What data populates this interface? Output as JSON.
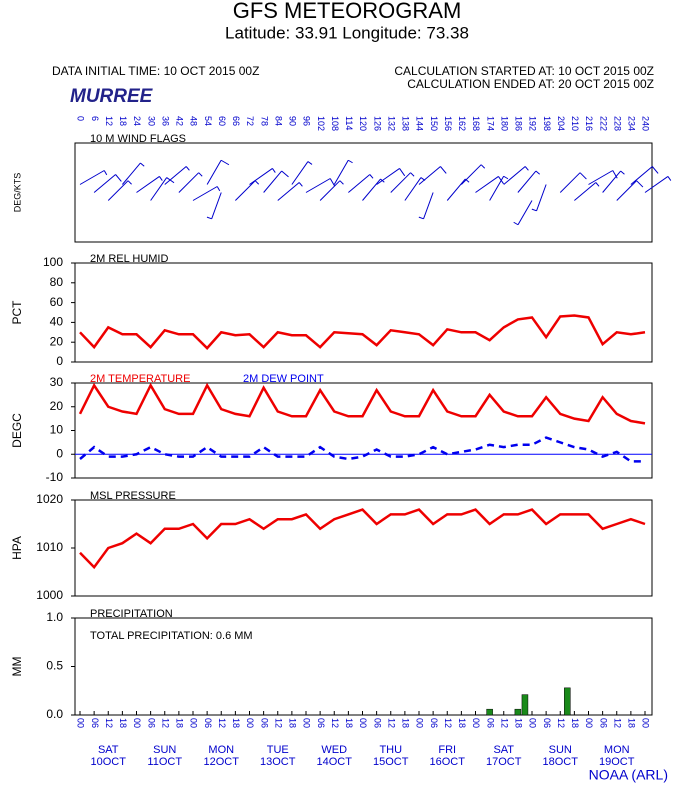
{
  "header": {
    "title": "GFS METEOROGRAM",
    "subtitle": "Latitude: 33.91 Longitude:  73.38",
    "initial_time": "DATA INITIAL TIME: 10 OCT 2015 00Z",
    "calc_started": "CALCULATION STARTED AT: 10 OCT 2015 00Z",
    "calc_ended": "CALCULATION ENDED AT: 20 OCT 2015 00Z",
    "location": "MURREE",
    "footer": "NOAA (ARL)"
  },
  "time_axis": {
    "xlim": [
      0,
      240
    ],
    "hours": [
      0,
      6,
      12,
      18,
      24,
      30,
      36,
      42,
      48,
      54,
      60,
      66,
      72,
      78,
      84,
      90,
      96,
      102,
      108,
      114,
      120,
      126,
      132,
      138,
      144,
      150,
      156,
      162,
      168,
      174,
      180,
      186,
      192,
      198,
      204,
      210,
      216,
      222,
      228,
      234,
      240
    ],
    "utc_labels": [
      "00",
      "06",
      "12",
      "18",
      "00",
      "06",
      "12",
      "18",
      "00",
      "06",
      "12",
      "18",
      "00",
      "06",
      "12",
      "18",
      "00",
      "06",
      "12",
      "18",
      "00",
      "06",
      "12",
      "18",
      "00",
      "06",
      "12",
      "18",
      "00",
      "06",
      "12",
      "18",
      "00",
      "06",
      "12",
      "18",
      "00",
      "06",
      "12",
      "18",
      "00"
    ],
    "days": [
      {
        "hour": 12,
        "weekday": "SAT",
        "date": "10OCT"
      },
      {
        "hour": 36,
        "weekday": "SUN",
        "date": "11OCT"
      },
      {
        "hour": 60,
        "weekday": "MON",
        "date": "12OCT"
      },
      {
        "hour": 84,
        "weekday": "TUE",
        "date": "13OCT"
      },
      {
        "hour": 108,
        "weekday": "WED",
        "date": "14OCT"
      },
      {
        "hour": 132,
        "weekday": "THU",
        "date": "15OCT"
      },
      {
        "hour": 156,
        "weekday": "FRI",
        "date": "16OCT"
      },
      {
        "hour": 180,
        "weekday": "SAT",
        "date": "17OCT"
      },
      {
        "hour": 204,
        "weekday": "SUN",
        "date": "18OCT"
      },
      {
        "hour": 228,
        "weekday": "MON",
        "date": "19OCT"
      }
    ]
  },
  "chart_data": [
    {
      "type": "wind",
      "title": "10 M  WIND FLAGS",
      "ylabel": "DEG/KTS",
      "color": "#0000cc",
      "direction": [
        60,
        50,
        45,
        40,
        55,
        35,
        50,
        45,
        60,
        30,
        200,
        45,
        55,
        40,
        50,
        35,
        60,
        45,
        30,
        50,
        40,
        55,
        45,
        35,
        50,
        200,
        40,
        45,
        55,
        30,
        50,
        40,
        210,
        200,
        45,
        50,
        60,
        40,
        45,
        50,
        55
      ],
      "speed": [
        8,
        10,
        7,
        9,
        8,
        12,
        9,
        7,
        8,
        10,
        6,
        9,
        8,
        11,
        9,
        7,
        10,
        8,
        9,
        8,
        7,
        10,
        9,
        8,
        11,
        6,
        9,
        8,
        10,
        7,
        9,
        8,
        6,
        7,
        10,
        9,
        11,
        8,
        10,
        12,
        9
      ]
    },
    {
      "type": "line",
      "ylabel": "PCT",
      "ylim": [
        0,
        100
      ],
      "yticks": [
        0,
        20,
        40,
        60,
        80,
        100
      ],
      "series": [
        {
          "name": "2M REL HUMID",
          "color": "#ee0000",
          "values": [
            30,
            15,
            35,
            28,
            28,
            15,
            32,
            28,
            28,
            14,
            30,
            27,
            28,
            15,
            30,
            27,
            27,
            15,
            30,
            29,
            28,
            17,
            32,
            30,
            28,
            17,
            33,
            30,
            30,
            22,
            35,
            43,
            45,
            25,
            46,
            47,
            45,
            18,
            30,
            28,
            30
          ]
        }
      ]
    },
    {
      "type": "line",
      "ylabel": "DEGC",
      "ylim": [
        -10,
        30
      ],
      "yticks": [
        -10,
        0,
        10,
        20,
        30
      ],
      "reference_line": {
        "value": 0,
        "color": "#0000ff"
      },
      "series": [
        {
          "name": "2M TEMPERATURE",
          "color": "#ee0000",
          "values": [
            17,
            29,
            20,
            18,
            17,
            29,
            19,
            17,
            17,
            29,
            19,
            17,
            16,
            28,
            18,
            16,
            16,
            27,
            18,
            16,
            16,
            27,
            18,
            16,
            16,
            27,
            18,
            16,
            16,
            25,
            18,
            16,
            16,
            24,
            17,
            15,
            14,
            24,
            17,
            14,
            13
          ]
        },
        {
          "name": "2M  DEW POINT",
          "color": "#0000ee",
          "dashed": true,
          "values": [
            -2,
            3,
            -1,
            -1,
            0,
            3,
            0,
            -1,
            -1,
            3,
            -1,
            -1,
            -1,
            3,
            -1,
            -1,
            -1,
            3,
            -1,
            -2,
            -1,
            2,
            -1,
            -1,
            0,
            3,
            0,
            1,
            2,
            4,
            3,
            4,
            4,
            7,
            5,
            3,
            2,
            -1,
            1,
            -3,
            -3
          ]
        }
      ]
    },
    {
      "type": "line",
      "ylabel": "HPA",
      "ylim": [
        1000,
        1020
      ],
      "yticks": [
        1000,
        1010,
        1020
      ],
      "series": [
        {
          "name": "MSL PRESSURE",
          "color": "#ee0000",
          "values": [
            1009,
            1006,
            1010,
            1011,
            1013,
            1011,
            1014,
            1014,
            1015,
            1012,
            1015,
            1015,
            1016,
            1014,
            1016,
            1016,
            1017,
            1014,
            1016,
            1017,
            1018,
            1015,
            1017,
            1017,
            1018,
            1015,
            1017,
            1017,
            1018,
            1015,
            1017,
            1017,
            1018,
            1015,
            1017,
            1017,
            1017,
            1014,
            1015,
            1016,
            1015
          ]
        }
      ]
    },
    {
      "type": "bar",
      "ylabel": "MM",
      "ylim": [
        0,
        1
      ],
      "yticks": [
        {
          "value": 0,
          "label": "0.0"
        },
        0.5,
        {
          "value": 1,
          "label": "1.0"
        }
      ],
      "annotation": "TOTAL PRECIPITATION:  0.6 MM",
      "series": [
        {
          "name": "PRECIPITATION",
          "color": "#1a8a1a",
          "x": [
            174,
            186,
            189,
            207
          ],
          "values": [
            0.06,
            0.06,
            0.21,
            0.28
          ]
        }
      ]
    }
  ]
}
